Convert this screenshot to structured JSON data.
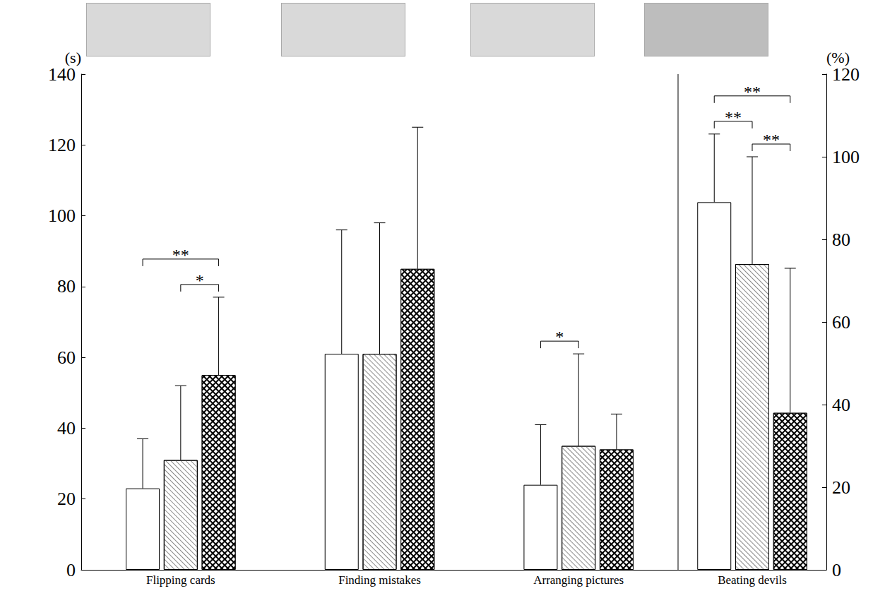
{
  "chart_data": [
    {
      "type": "bar",
      "y_label": "(s)",
      "categories": [
        "Flipping cards",
        "Finding mistakes",
        "Arranging pictures"
      ],
      "series": [
        {
          "color": "#ffffff",
          "values": [
            23,
            61,
            24
          ],
          "errors": [
            14,
            35,
            17
          ]
        },
        {
          "color": "#ffffff",
          "values": [
            31,
            61,
            35
          ],
          "errors": [
            21,
            37,
            26
          ]
        },
        {
          "color": "#000000",
          "values": [
            55,
            85,
            34
          ],
          "errors": [
            22,
            40,
            10
          ]
        }
      ],
      "ylim": [
        0,
        140
      ],
      "yticks": [
        0,
        20,
        40,
        60,
        80,
        100,
        120,
        140
      ],
      "grid": false,
      "significance": [
        {
          "category": "Flipping cards",
          "from": 0,
          "to": 2,
          "label": "**"
        },
        {
          "category": "Flipping cards",
          "from": 1,
          "to": 2,
          "label": "*"
        },
        {
          "category": "Arranging pictures",
          "from": 0,
          "to": 1,
          "label": "*"
        }
      ]
    },
    {
      "type": "bar",
      "y_label": "(%)",
      "categories": [
        "Beating devils"
      ],
      "series": [
        {
          "color": "#ffffff",
          "values": [
            89
          ],
          "errors": [
            16.5
          ]
        },
        {
          "color": "#ffffff",
          "values": [
            74
          ],
          "errors": [
            26
          ]
        },
        {
          "color": "#000000",
          "values": [
            38
          ],
          "errors": [
            35
          ]
        }
      ],
      "ylim": [
        0,
        120
      ],
      "yticks": [
        0,
        20,
        40,
        60,
        80,
        100,
        120
      ],
      "grid": false,
      "significance": [
        {
          "category": "Beating devils",
          "from": 0,
          "to": 1,
          "label": "**"
        },
        {
          "category": "Beating devils",
          "from": 1,
          "to": 2,
          "label": "**"
        },
        {
          "category": "Beating devils",
          "from": 0,
          "to": 2,
          "label": "**"
        }
      ]
    }
  ]
}
